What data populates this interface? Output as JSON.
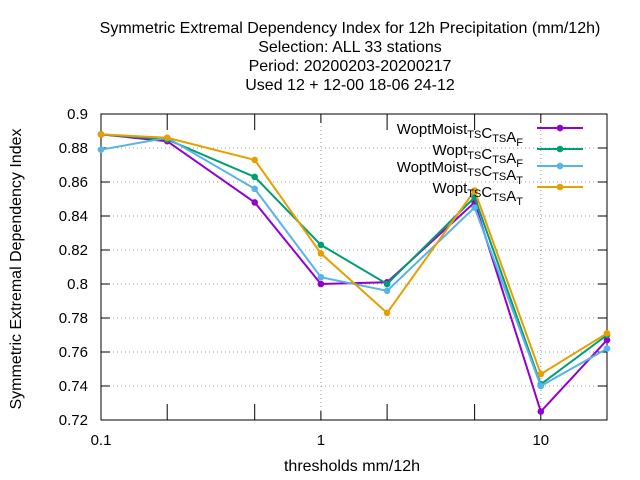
{
  "chart_data": {
    "type": "line",
    "title_lines": [
      "Symmetric Extremal Dependency Index  for 12h Precipitation (mm/12h)",
      "Selection: ALL     33 stations",
      "Period: 20200203-20200217",
      "Used  12 + 12-00 18-06 24-12"
    ],
    "xlabel": "thresholds mm/12h",
    "ylabel": "Symmetric Extremal Dependency Index",
    "x_scale": "log",
    "xlim": [
      0.1,
      20
    ],
    "ylim": [
      0.72,
      0.9
    ],
    "x_ticks": [
      0.1,
      1,
      10
    ],
    "x_tick_labels": [
      "0.1",
      "1",
      "10"
    ],
    "x_minor_ticks": [
      0.2,
      0.5,
      2,
      5,
      20
    ],
    "y_ticks": [
      0.72,
      0.74,
      0.76,
      0.78,
      0.8,
      0.82,
      0.84,
      0.86,
      0.88,
      0.9
    ],
    "y_tick_labels": [
      "0.72",
      "0.74",
      "0.76",
      "0.78",
      "0.8",
      "0.82",
      "0.84",
      "0.86",
      "0.88",
      "0.9"
    ],
    "grid": true,
    "legend_position": "top-right",
    "x": [
      0.1,
      0.2,
      0.5,
      1,
      2,
      5,
      10,
      20
    ],
    "series": [
      {
        "name": "WoptMoist",
        "sub1": "TS",
        "mid1": "C",
        "sub2": "TS",
        "mid2": "A",
        "sub3": "F",
        "color": "#9400d3",
        "values": [
          0.888,
          0.884,
          0.848,
          0.8,
          0.801,
          0.848,
          0.725,
          0.767
        ]
      },
      {
        "name": "Wopt",
        "sub1": "TS",
        "mid1": "C",
        "sub2": "TS",
        "mid2": "A",
        "sub3": "F",
        "color": "#009e73",
        "values": [
          0.888,
          0.885,
          0.863,
          0.823,
          0.8,
          0.851,
          0.741,
          0.77
        ]
      },
      {
        "name": "WoptMoist",
        "sub1": "TS",
        "mid1": "C",
        "sub2": "TS",
        "mid2": "A",
        "sub3": "T",
        "color": "#56b4e9",
        "values": [
          0.879,
          0.886,
          0.856,
          0.804,
          0.796,
          0.845,
          0.74,
          0.762
        ]
      },
      {
        "name": "Wopt",
        "sub1": "TS",
        "mid1": "C",
        "sub2": "TS",
        "mid2": "A",
        "sub3": "T",
        "color": "#e69f00",
        "values": [
          0.888,
          0.886,
          0.873,
          0.818,
          0.783,
          0.855,
          0.747,
          0.771
        ]
      }
    ]
  }
}
